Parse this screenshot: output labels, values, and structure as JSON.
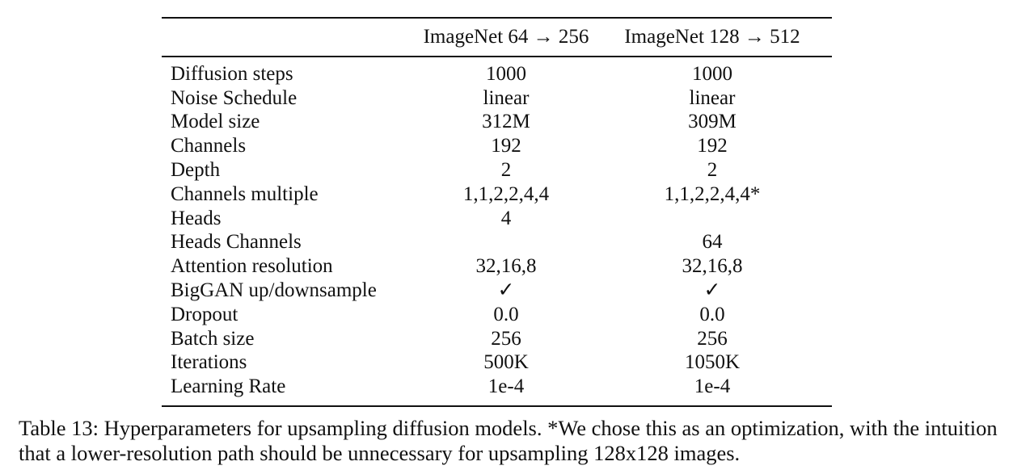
{
  "table": {
    "headers": [
      "",
      "ImageNet 64 → 256",
      "ImageNet 128 → 512"
    ],
    "rows": [
      {
        "label": "Diffusion steps",
        "a": "1000",
        "b": "1000"
      },
      {
        "label": "Noise Schedule",
        "a": "linear",
        "b": "linear"
      },
      {
        "label": "Model size",
        "a": "312M",
        "b": "309M"
      },
      {
        "label": "Channels",
        "a": "192",
        "b": "192"
      },
      {
        "label": "Depth",
        "a": "2",
        "b": "2"
      },
      {
        "label": "Channels multiple",
        "a": "1,1,2,2,4,4",
        "b": "1,1,2,2,4,4*"
      },
      {
        "label": "Heads",
        "a": "4",
        "b": ""
      },
      {
        "label": "Heads Channels",
        "a": "",
        "b": "64"
      },
      {
        "label": "Attention resolution",
        "a": "32,16,8",
        "b": "32,16,8"
      },
      {
        "label": "BigGAN up/downsample",
        "a": "✓",
        "b": "✓"
      },
      {
        "label": "Dropout",
        "a": "0.0",
        "b": "0.0"
      },
      {
        "label": "Batch size",
        "a": "256",
        "b": "256"
      },
      {
        "label": "Iterations",
        "a": "500K",
        "b": "1050K"
      },
      {
        "label": "Learning Rate",
        "a": "1e-4",
        "b": "1e-4"
      }
    ]
  },
  "caption": "Table 13: Hyperparameters for upsampling diffusion models. *We chose this as an optimization, with the intuition that a lower-resolution path should be unnecessary for upsampling 128x128 images."
}
